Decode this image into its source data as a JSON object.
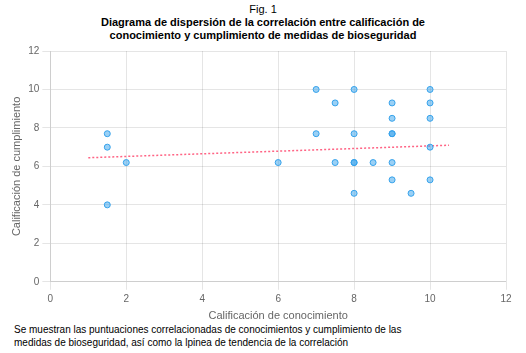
{
  "chart_data": {
    "type": "scatter",
    "title": "Fig. 1",
    "subtitle": "Diagrama de dispersión de la correlación entre calificación de\nconocimiento y cumplimiento de medidas de bioseguridad",
    "xlabel": "Calificación de conocimiento",
    "ylabel": "Calificación de cumplimiento",
    "caption": "Se muestran las puntuaciones correlacionadas de conocimientos y cumplimiento de las\nmedidas de bioseguridad, así como la lpinea de tendencia de la correlación",
    "xlim": [
      0,
      12
    ],
    "ylim": [
      0,
      12
    ],
    "xticks": [
      0,
      2,
      4,
      6,
      8,
      10,
      12
    ],
    "yticks": [
      0,
      2,
      4,
      6,
      8,
      10,
      12
    ],
    "grid": true,
    "series": [
      {
        "type": "scatter",
        "marker": "circle",
        "x": [
          1.5,
          1.5,
          1.5,
          2.0,
          6.0,
          7.0,
          7.0,
          7.5,
          7.5,
          8.0,
          8.0,
          8.0,
          8.0,
          8.0,
          8.5,
          9.0,
          9.0,
          9.0,
          9.0,
          9.0,
          9.0,
          9.5,
          10.0,
          10.0,
          10.0,
          10.0,
          10.0
        ],
        "values": [
          7.7,
          7.0,
          4.0,
          6.2,
          6.2,
          10.0,
          7.7,
          6.2,
          9.3,
          10.0,
          7.7,
          6.2,
          6.2,
          4.6,
          6.2,
          9.3,
          8.5,
          7.7,
          7.7,
          6.2,
          5.3,
          4.6,
          10.0,
          9.3,
          8.5,
          7.0,
          5.3
        ]
      },
      {
        "type": "line",
        "line_style": "dotted",
        "x": [
          1.0,
          10.5
        ],
        "values": [
          6.45,
          7.1
        ]
      }
    ]
  }
}
